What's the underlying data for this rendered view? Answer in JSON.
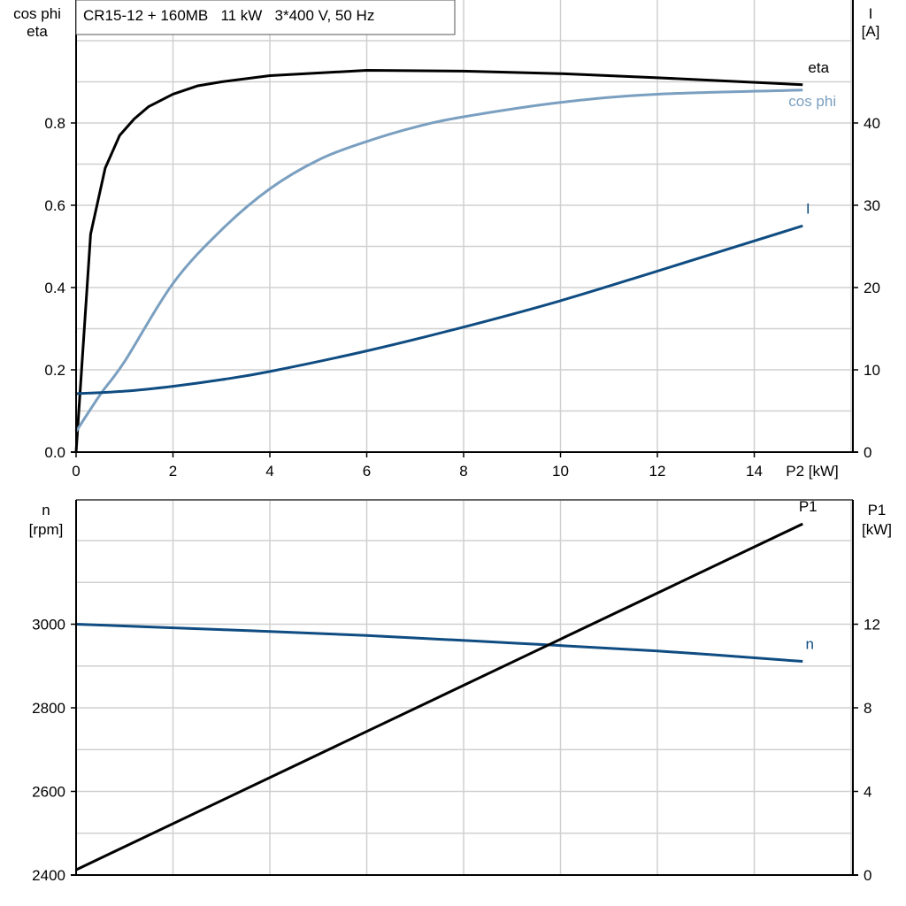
{
  "header": {
    "title": "CR15-12 + 160MB   11 kW   3*400 V, 50 Hz"
  },
  "chart_data": [
    {
      "type": "line",
      "xlabel": "P2 [kW]",
      "xlim": [
        0,
        16
      ],
      "xticks": [
        "0",
        "2",
        "4",
        "6",
        "8",
        "10",
        "12",
        "14"
      ],
      "ylabel_left": [
        "cos phi",
        "eta"
      ],
      "ylim_left": [
        0,
        1.1
      ],
      "yticks_left": [
        "0.0",
        "0.2",
        "0.4",
        "0.6",
        "0.8"
      ],
      "ylabel_right": [
        "I",
        "[A]"
      ],
      "ylim_right": [
        0,
        55
      ],
      "yticks_right": [
        "0",
        "10",
        "20",
        "30",
        "40"
      ],
      "grid": true,
      "series": [
        {
          "name": "eta",
          "axis": "left",
          "color": "#000000",
          "x": [
            0,
            0.3,
            0.6,
            0.9,
            1.2,
            1.5,
            2,
            2.5,
            3,
            4,
            6,
            8,
            10,
            12,
            15
          ],
          "y": [
            0,
            0.53,
            0.69,
            0.77,
            0.81,
            0.84,
            0.87,
            0.89,
            0.9,
            0.915,
            0.928,
            0.926,
            0.92,
            0.91,
            0.893
          ]
        },
        {
          "name": "cos phi",
          "axis": "left",
          "color": "#7a9fc0",
          "x": [
            0,
            0.5,
            1,
            2,
            3,
            4,
            5,
            6,
            7,
            8,
            10,
            12,
            15
          ],
          "y": [
            0.05,
            0.14,
            0.22,
            0.41,
            0.54,
            0.64,
            0.71,
            0.755,
            0.79,
            0.815,
            0.85,
            0.87,
            0.88
          ]
        },
        {
          "name": "I",
          "axis": "right",
          "color": "#0f4c81",
          "x": [
            0,
            1,
            2,
            3,
            4,
            6,
            8,
            10,
            12,
            15
          ],
          "y": [
            7.1,
            7.4,
            8.0,
            8.8,
            9.8,
            12.3,
            15.2,
            18.4,
            22.0,
            27.5
          ]
        }
      ]
    },
    {
      "type": "line",
      "xlim": [
        0,
        16
      ],
      "ylabel_left": [
        "n",
        "[rpm]"
      ],
      "ylim_left": [
        2400,
        3300
      ],
      "yticks_left": [
        "2400",
        "2600",
        "2800",
        "3000"
      ],
      "ylabel_right": [
        "P1",
        "[kW]"
      ],
      "ylim_right": [
        0,
        18
      ],
      "yticks_right": [
        "0",
        "4",
        "8",
        "12"
      ],
      "grid": true,
      "series": [
        {
          "name": "n",
          "axis": "left",
          "color": "#0f4c81",
          "x": [
            0,
            3,
            6,
            9,
            12,
            15
          ],
          "y": [
            3000,
            2987,
            2973,
            2955,
            2936,
            2911
          ]
        },
        {
          "name": "P1",
          "axis": "right",
          "color": "#000000",
          "x": [
            0,
            15
          ],
          "y": [
            0.25,
            16.8
          ]
        }
      ]
    }
  ]
}
